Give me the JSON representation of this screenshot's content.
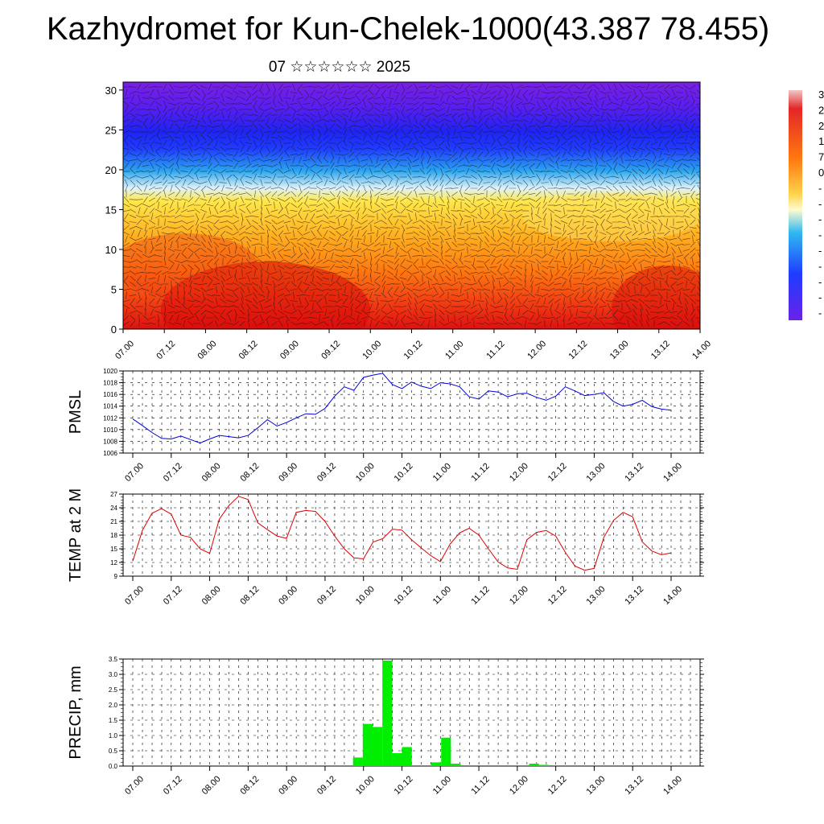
{
  "title": "Kazhydromet for Kun-Chelek-1000(43.387 78.455)",
  "subtitle": "07 ☆☆☆☆☆☆ 2025",
  "chart_data": [
    {
      "type": "heatmap",
      "panel": "cross-section",
      "x_ticks": [
        "07.00",
        "07.12",
        "08.00",
        "08.12",
        "09.00",
        "09.12",
        "10.00",
        "10.12",
        "11.00",
        "11.12",
        "12.00",
        "12.12",
        "13.00",
        "13.12",
        "14.00"
      ],
      "y_ticks": [
        0,
        5,
        10,
        15,
        20,
        25,
        30
      ],
      "ylim": [
        0,
        31
      ],
      "colorbar_labels": [
        "3",
        "2",
        "2",
        "1",
        "7",
        "0",
        "-",
        "-",
        "-",
        "-",
        "-",
        "-",
        "-",
        "-",
        "-"
      ],
      "colors": [
        "#f2c6c6",
        "#e32626",
        "#ff6a00",
        "#ffd24a",
        "#fffbd0",
        "#2fb8f0",
        "#1f3cff",
        "#6a22e8"
      ]
    },
    {
      "type": "line",
      "ylabel": "PMSL",
      "x_ticks": [
        "07.00",
        "07.12",
        "08.00",
        "08.12",
        "09.00",
        "09.12",
        "10.00",
        "10.12",
        "11.00",
        "11.12",
        "12.00",
        "12.12",
        "13.00",
        "13.12",
        "14.00"
      ],
      "y_ticks": [
        1006,
        1008,
        1010,
        1012,
        1014,
        1016,
        1018,
        1020
      ],
      "ylim": [
        1006,
        1020
      ],
      "color": "#0000dd",
      "values": [
        1011.8,
        1010.7,
        1009.5,
        1008.5,
        1008.4,
        1008.9,
        1008.3,
        1007.7,
        1008.4,
        1009.0,
        1008.8,
        1008.6,
        1009.0,
        1010.3,
        1011.7,
        1010.6,
        1011.2,
        1012.0,
        1012.7,
        1012.6,
        1013.6,
        1015.7,
        1017.3,
        1016.7,
        1018.9,
        1019.3,
        1019.6,
        1017.7,
        1017.0,
        1018.1,
        1017.4,
        1017.0,
        1018.0,
        1017.8,
        1017.3,
        1015.6,
        1015.2,
        1016.6,
        1016.4,
        1015.6,
        1016.1,
        1016.2,
        1015.5,
        1015.0,
        1015.7,
        1017.3,
        1016.6,
        1015.8,
        1016.0,
        1016.3,
        1014.8,
        1014.0,
        1014.3,
        1015.0,
        1013.9,
        1013.5,
        1013.3
      ]
    },
    {
      "type": "line",
      "ylabel": "TEMP at 2 M",
      "x_ticks": [
        "07.00",
        "07.12",
        "08.00",
        "08.12",
        "09.00",
        "09.12",
        "10.00",
        "10.12",
        "11.00",
        "11.12",
        "12.00",
        "12.12",
        "13.00",
        "13.12",
        "14.00"
      ],
      "y_ticks": [
        9,
        12,
        15,
        18,
        21,
        24,
        27
      ],
      "ylim": [
        9,
        27
      ],
      "color": "#dd0000",
      "values": [
        12.3,
        19.0,
        22.8,
        23.8,
        22.6,
        18.0,
        17.5,
        15.0,
        14.0,
        21.5,
        24.5,
        26.5,
        25.8,
        20.7,
        19.2,
        17.8,
        17.3,
        23.0,
        23.4,
        23.2,
        21.0,
        17.8,
        15.0,
        13.0,
        12.8,
        16.5,
        17.2,
        19.3,
        19.1,
        17.0,
        15.2,
        13.5,
        12.2,
        16.0,
        18.5,
        19.5,
        18.0,
        15.0,
        12.1,
        10.8,
        10.5,
        17.0,
        18.6,
        19.0,
        17.8,
        14.2,
        11.2,
        10.3,
        10.7,
        17.5,
        21.2,
        23.0,
        22.0,
        16.5,
        14.5,
        13.7,
        14.1
      ]
    },
    {
      "type": "bar",
      "ylabel": "PRECIP, mm",
      "x_ticks": [
        "07.00",
        "07.12",
        "08.00",
        "08.12",
        "09.00",
        "09.12",
        "10.00",
        "10.12",
        "11.00",
        "11.12",
        "12.00",
        "12.12",
        "13.00",
        "13.12",
        "14.00"
      ],
      "y_ticks": [
        "0.0",
        "0.5",
        "1.0",
        "1.5",
        "2.0",
        "2.5",
        "3.0",
        "3.5"
      ],
      "ylim": [
        0,
        3.5
      ],
      "color": "#00ee00",
      "values": [
        0,
        0,
        0,
        0,
        0,
        0,
        0,
        0,
        0,
        0,
        0,
        0,
        0,
        0,
        0,
        0,
        0,
        0,
        0,
        0,
        0,
        0,
        0,
        0.28,
        1.38,
        1.28,
        3.45,
        0.42,
        0.62,
        0,
        0,
        0.12,
        0.93,
        0.08,
        0,
        0,
        0,
        0,
        0,
        0,
        0,
        0.08,
        0.04,
        0,
        0,
        0,
        0,
        0,
        0,
        0,
        0,
        0,
        0,
        0,
        0,
        0
      ]
    }
  ]
}
